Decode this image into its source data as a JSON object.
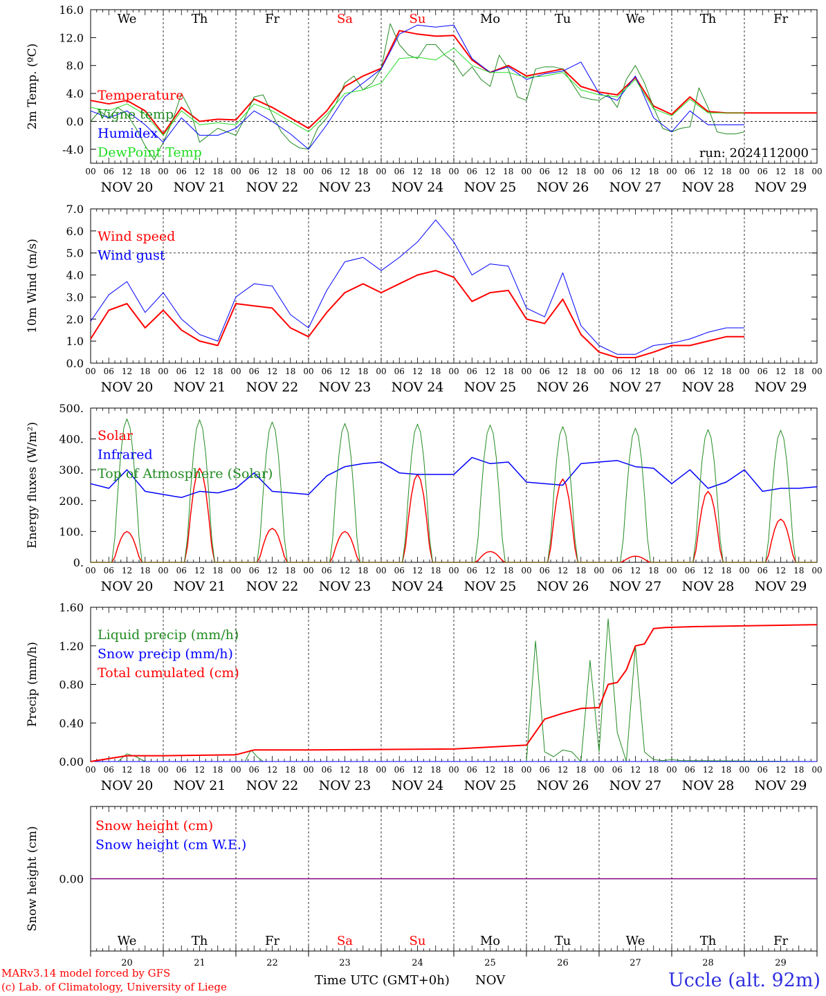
{
  "run_label": "run: 2024112000",
  "days": [
    {
      "dow": "We",
      "date": "NOV 20",
      "num": "20",
      "weekend": false
    },
    {
      "dow": "Th",
      "date": "NOV 21",
      "num": "21",
      "weekend": false
    },
    {
      "dow": "Fr",
      "date": "NOV 22",
      "num": "22",
      "weekend": false
    },
    {
      "dow": "Sa",
      "date": "NOV 23",
      "num": "23",
      "weekend": true
    },
    {
      "dow": "Su",
      "date": "NOV 24",
      "num": "24",
      "weekend": true
    },
    {
      "dow": "Mo",
      "date": "NOV 25",
      "num": "25",
      "weekend": false
    },
    {
      "dow": "Tu",
      "date": "NOV 26",
      "num": "26",
      "weekend": false
    },
    {
      "dow": "We",
      "date": "NOV 27",
      "num": "27",
      "weekend": false
    },
    {
      "dow": "Th",
      "date": "NOV 28",
      "num": "28",
      "weekend": false
    },
    {
      "dow": "Fr",
      "date": "NOV 29",
      "num": "29",
      "weekend": false
    }
  ],
  "hour_ticks": [
    "00",
    "06",
    "12",
    "18"
  ],
  "footer": {
    "credit_line1": "MARv3.14 model forced by GFS",
    "credit_line2": "(c) Lab. of Climatology, University of Liege",
    "xlabel": "Time UTC (GMT+0h)",
    "month": "NOV",
    "station": "Uccle (alt. 92m)"
  },
  "colors": {
    "red": "#ff0000",
    "green": "#228b22",
    "blue": "#0000ff",
    "light_green": "#22dd22",
    "purple": "#800080",
    "weekend": "#ff0000"
  },
  "chart_data": [
    {
      "id": "temp",
      "type": "line",
      "ylabel": "2m Temp. (ºC)",
      "ylim": [
        -6,
        16
      ],
      "yticks": [
        "-4.0",
        "0.0",
        "4.0",
        "8.0",
        "12.0",
        "16.0"
      ],
      "ytick_values": [
        -4,
        0,
        4,
        8,
        12,
        16
      ],
      "ref_line": 0,
      "x_unit": "hours since NOV 20 00 UTC",
      "series": [
        {
          "name": "Temperature",
          "color": "#ff0000",
          "width": 2,
          "x": [
            0,
            6,
            12,
            18,
            24,
            30,
            36,
            42,
            48,
            54,
            60,
            66,
            72,
            78,
            84,
            90,
            96,
            102,
            108,
            114,
            120,
            126,
            132,
            138,
            144,
            150,
            156,
            162,
            168,
            174,
            180,
            186,
            192,
            198,
            204,
            210,
            216,
            222,
            228,
            234,
            240
          ],
          "y": [
            3.0,
            2.5,
            3.0,
            1.5,
            -1.8,
            2.0,
            0.0,
            0.3,
            0.2,
            3.2,
            2.0,
            0.5,
            -1.0,
            1.5,
            5.0,
            6.5,
            7.6,
            13.0,
            12.5,
            12.2,
            12.3,
            8.8,
            7.0,
            8.0,
            6.5,
            7.0,
            7.5,
            5.0,
            4.2,
            3.8,
            6.3,
            2.2,
            1.0,
            3.5,
            1.4,
            1.2,
            1.2,
            1.2,
            1.2,
            1.2,
            1.2
          ]
        },
        {
          "name": "Vigne temp",
          "color": "#228b22",
          "width": 1,
          "x": [
            0,
            3,
            6,
            9,
            12,
            15,
            18,
            21,
            24,
            27,
            30,
            33,
            36,
            39,
            42,
            45,
            48,
            51,
            54,
            57,
            60,
            63,
            66,
            69,
            72,
            75,
            78,
            81,
            84,
            87,
            90,
            93,
            96,
            99,
            102,
            105,
            108,
            111,
            114,
            117,
            120,
            123,
            126,
            129,
            132,
            135,
            138,
            141,
            144,
            147,
            150,
            153,
            156,
            159,
            162,
            165,
            168,
            171,
            174,
            177,
            180,
            183,
            186,
            189,
            192,
            195,
            198,
            201,
            204,
            207,
            210,
            213,
            216
          ],
          "y": [
            0.0,
            1.5,
            0.5,
            2.0,
            1.0,
            -1.0,
            -3.5,
            -5.5,
            -3.0,
            0.0,
            4.0,
            1.5,
            -3.0,
            -2.0,
            -1.0,
            -1.5,
            -2.0,
            0.5,
            3.5,
            3.8,
            1.0,
            -1.5,
            -3.0,
            -3.8,
            -4.0,
            -1.0,
            0.5,
            2.5,
            5.5,
            6.5,
            4.5,
            5.5,
            7.5,
            14.0,
            11.0,
            9.5,
            9.0,
            11.0,
            11.0,
            9.5,
            8.5,
            6.5,
            7.8,
            6.0,
            5.0,
            9.5,
            7.5,
            3.5,
            3.0,
            7.5,
            7.8,
            7.8,
            7.5,
            5.5,
            3.5,
            3.2,
            3.0,
            3.8,
            2.0,
            6.0,
            8.0,
            5.5,
            2.0,
            -1.0,
            -1.5,
            -1.0,
            -0.8,
            4.8,
            2.0,
            -1.5,
            -1.8,
            -1.8,
            -1.5
          ]
        },
        {
          "name": "Humidex",
          "color": "#0000ff",
          "width": 1,
          "x": [
            0,
            6,
            12,
            18,
            24,
            30,
            36,
            42,
            48,
            54,
            60,
            66,
            72,
            78,
            84,
            90,
            96,
            102,
            108,
            114,
            120,
            126,
            132,
            138,
            144,
            150,
            156,
            162,
            168,
            174,
            180,
            186,
            192,
            198,
            204,
            210,
            216
          ],
          "y": [
            1.5,
            0.5,
            1.5,
            -0.5,
            -3.0,
            0.5,
            -2.0,
            -2.0,
            -1.0,
            1.5,
            0.0,
            -1.8,
            -4.0,
            -0.5,
            3.5,
            5.5,
            7.5,
            12.5,
            13.8,
            13.5,
            13.8,
            9.0,
            7.0,
            7.8,
            6.0,
            6.8,
            7.2,
            8.5,
            4.0,
            3.0,
            6.5,
            0.5,
            -1.5,
            1.5,
            -0.5,
            -0.5,
            -0.5
          ]
        },
        {
          "name": "DewPoint Temp",
          "color": "#22dd22",
          "width": 1,
          "x": [
            0,
            6,
            12,
            18,
            24,
            30,
            36,
            42,
            48,
            54,
            60,
            66,
            72,
            78,
            84,
            90,
            96,
            102,
            108,
            114,
            120,
            126,
            132,
            138,
            144,
            150,
            156,
            162,
            168,
            174,
            180,
            186,
            192,
            198,
            204,
            210,
            216
          ],
          "y": [
            2.0,
            1.5,
            2.5,
            1.0,
            -2.0,
            1.5,
            -0.5,
            -0.2,
            -0.5,
            2.5,
            1.5,
            0.0,
            -1.5,
            1.0,
            4.0,
            4.5,
            5.5,
            9.0,
            9.2,
            8.8,
            10.5,
            8.0,
            7.0,
            7.0,
            6.3,
            6.5,
            7.0,
            4.5,
            3.8,
            3.5,
            6.0,
            1.8,
            0.8,
            3.2,
            1.2,
            1.2,
            1.2
          ]
        }
      ]
    },
    {
      "id": "wind",
      "type": "line",
      "ylabel": "10m Wind (m/s)",
      "ylim": [
        0,
        7
      ],
      "yticks": [
        "0.0",
        "1.0",
        "2.0",
        "3.0",
        "4.0",
        "5.0",
        "6.0",
        "7.0"
      ],
      "ytick_values": [
        0,
        1,
        2,
        3,
        4,
        5,
        6,
        7
      ],
      "ref_line": 5,
      "x_unit": "hours since NOV 20 00 UTC",
      "series": [
        {
          "name": "Wind speed",
          "color": "#ff0000",
          "width": 2,
          "x": [
            0,
            6,
            12,
            18,
            24,
            30,
            36,
            42,
            48,
            54,
            60,
            66,
            72,
            78,
            84,
            90,
            96,
            102,
            108,
            114,
            120,
            126,
            132,
            138,
            144,
            150,
            156,
            162,
            168,
            174,
            180,
            186,
            192,
            198,
            204,
            210,
            216
          ],
          "y": [
            1.1,
            2.4,
            2.7,
            1.6,
            2.4,
            1.5,
            1.0,
            0.8,
            2.7,
            2.6,
            2.5,
            1.6,
            1.2,
            2.3,
            3.2,
            3.6,
            3.2,
            3.6,
            4.0,
            4.2,
            3.9,
            2.8,
            3.2,
            3.3,
            2.0,
            1.8,
            2.9,
            1.3,
            0.5,
            0.25,
            0.25,
            0.5,
            0.8,
            0.8,
            1.0,
            1.2,
            1.2
          ]
        },
        {
          "name": "Wind gust",
          "color": "#0000ff",
          "width": 1,
          "x": [
            0,
            6,
            12,
            18,
            24,
            30,
            36,
            42,
            48,
            54,
            60,
            66,
            72,
            78,
            84,
            90,
            96,
            102,
            108,
            114,
            120,
            126,
            132,
            138,
            144,
            150,
            156,
            162,
            168,
            174,
            180,
            186,
            192,
            198,
            204,
            210,
            216
          ],
          "y": [
            1.9,
            3.1,
            3.7,
            2.3,
            3.2,
            2.0,
            1.3,
            1.0,
            3.0,
            3.6,
            3.5,
            2.2,
            1.6,
            3.3,
            4.6,
            4.8,
            4.2,
            4.8,
            5.5,
            6.5,
            5.5,
            4.0,
            4.5,
            4.4,
            2.5,
            2.1,
            4.1,
            1.7,
            0.8,
            0.4,
            0.4,
            0.8,
            0.9,
            1.1,
            1.4,
            1.6,
            1.6
          ]
        }
      ]
    },
    {
      "id": "energy",
      "type": "line",
      "ylabel": "Energy fluxes (W/m²)",
      "ylim": [
        0,
        500
      ],
      "yticks": [
        "0.",
        "100.",
        "200.",
        "300.",
        "400.",
        "500."
      ],
      "ytick_values": [
        0,
        100,
        200,
        300,
        400,
        500
      ],
      "x_unit": "hours since NOV 20 00 UTC",
      "series": [
        {
          "name": "Solar",
          "color": "#ff0000",
          "width": 1.5,
          "pattern": "diurnal",
          "day_peaks": [
            100,
            305,
            110,
            100,
            285,
            35,
            270,
            20,
            230,
            140
          ]
        },
        {
          "name": "Infrared",
          "color": "#0000ff",
          "width": 1.5,
          "x": [
            0,
            6,
            12,
            18,
            24,
            30,
            36,
            42,
            48,
            54,
            60,
            66,
            72,
            78,
            84,
            90,
            96,
            102,
            108,
            114,
            120,
            126,
            132,
            138,
            144,
            150,
            156,
            162,
            168,
            174,
            180,
            186,
            192,
            198,
            204,
            210,
            216,
            222,
            228,
            234,
            240
          ],
          "y": [
            255,
            240,
            300,
            230,
            220,
            210,
            230,
            225,
            240,
            290,
            230,
            225,
            220,
            280,
            310,
            320,
            325,
            290,
            285,
            285,
            285,
            340,
            320,
            325,
            260,
            255,
            250,
            320,
            325,
            330,
            310,
            305,
            255,
            300,
            240,
            260,
            300,
            230,
            240,
            240,
            245
          ]
        },
        {
          "name": "Top of Atmosphere (Solar)",
          "color": "#228b22",
          "width": 1,
          "pattern": "diurnal",
          "day_peaks": [
            465,
            462,
            455,
            450,
            448,
            445,
            440,
            435,
            430,
            428
          ]
        }
      ]
    },
    {
      "id": "precip",
      "type": "line",
      "ylabel": "Precip (mm/h)",
      "ylim": [
        0,
        1.6
      ],
      "yticks": [
        "0.00",
        "0.40",
        "0.80",
        "1.20",
        "1.60"
      ],
      "ytick_values": [
        0,
        0.4,
        0.8,
        1.2,
        1.6
      ],
      "x_unit": "hours since NOV 20 00 UTC",
      "series": [
        {
          "name": "Liquid precip (mm/h)",
          "color": "#228b22",
          "width": 1,
          "x": [
            0,
            9,
            12,
            15,
            18,
            51,
            53,
            55,
            57,
            144,
            147,
            150,
            153,
            156,
            159,
            162,
            165,
            168,
            171,
            174,
            177,
            180,
            183,
            186,
            189,
            192,
            195,
            240
          ],
          "y": [
            0,
            0,
            0.08,
            0.05,
            0,
            0,
            0.12,
            0.05,
            0,
            0,
            1.25,
            0.1,
            0.05,
            0.12,
            0.1,
            0,
            1.05,
            0.1,
            1.48,
            0.3,
            0,
            1.2,
            0.1,
            0.02,
            0.01,
            0.02,
            0.01,
            0
          ]
        },
        {
          "name": "Snow precip (mm/h)",
          "color": "#0000ff",
          "width": 1,
          "x": [
            0,
            240
          ],
          "y": [
            0,
            0
          ]
        },
        {
          "name": "Total cumulated (cm)",
          "color": "#ff0000",
          "width": 2,
          "x": [
            0,
            12,
            24,
            48,
            54,
            72,
            120,
            144,
            150,
            156,
            162,
            168,
            171,
            174,
            177,
            180,
            183,
            186,
            190,
            200,
            240
          ],
          "y": [
            0,
            0.06,
            0.06,
            0.07,
            0.12,
            0.12,
            0.13,
            0.17,
            0.44,
            0.5,
            0.55,
            0.56,
            0.8,
            0.82,
            0.95,
            1.2,
            1.22,
            1.38,
            1.39,
            1.4,
            1.42
          ]
        }
      ]
    },
    {
      "id": "snow",
      "type": "line",
      "ylabel": "Snow height (cm)",
      "ylim": [
        -1,
        1
      ],
      "yticks": [
        "0.00"
      ],
      "ytick_values": [
        0
      ],
      "x_unit": "hours since NOV 20 00 UTC",
      "series": [
        {
          "name": "Snow height (cm)",
          "color": "#ff0000",
          "width": 1,
          "x": [
            0,
            240
          ],
          "y": [
            0,
            0
          ]
        },
        {
          "name": "Snow height (cm W.E.)",
          "color": "#0000ff",
          "width": 1,
          "x": [
            0,
            240
          ],
          "y": [
            0,
            0
          ]
        }
      ]
    }
  ]
}
